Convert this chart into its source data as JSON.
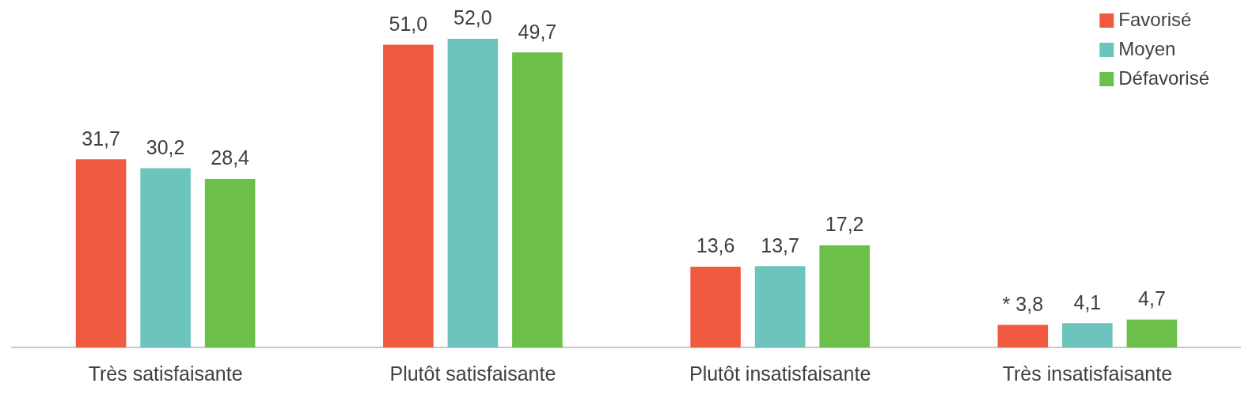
{
  "chart_data": {
    "type": "bar",
    "categories": [
      "Très satisfaisante",
      "Plutôt satisfaisante",
      "Plutôt insatisfaisante",
      "Très insatisfaisante"
    ],
    "series": [
      {
        "name": "Favorisé",
        "color": "#f05a40",
        "values": [
          31.7,
          51.0,
          13.6,
          3.8
        ],
        "value_labels": [
          "31,7",
          "51,0",
          "13,6",
          "* 3,8"
        ]
      },
      {
        "name": "Moyen",
        "color": "#6cc4bc",
        "values": [
          30.2,
          52.0,
          13.7,
          4.1
        ],
        "value_labels": [
          "30,2",
          "52,0",
          "13,7",
          "4,1"
        ]
      },
      {
        "name": "Défavorisé",
        "color": "#6cc04a",
        "values": [
          28.4,
          49.7,
          17.2,
          4.7
        ],
        "value_labels": [
          "28,4",
          "49,7",
          "17,2",
          "4,7"
        ]
      }
    ],
    "legend": "top right",
    "grid": false
  }
}
